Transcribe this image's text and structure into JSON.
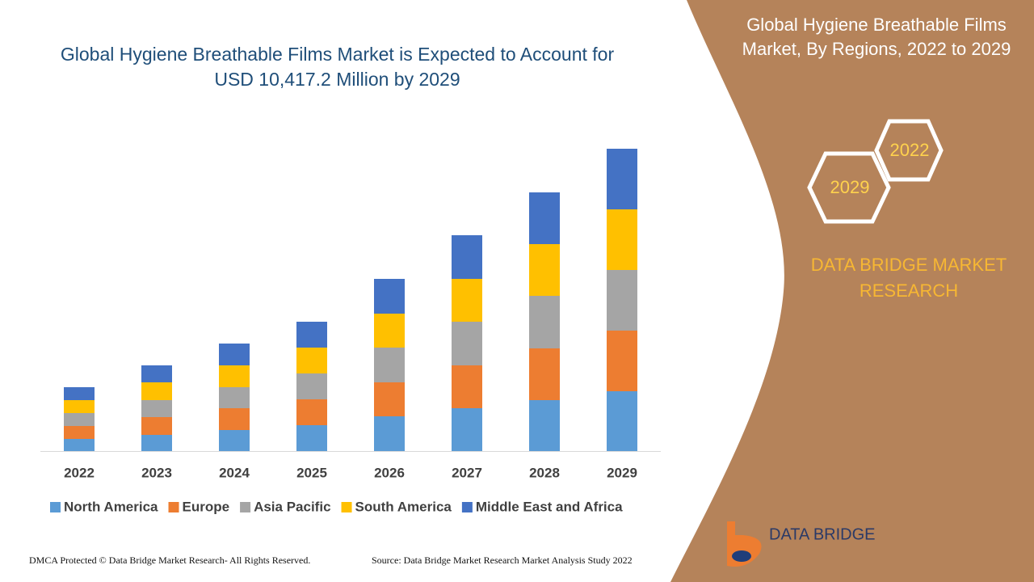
{
  "chart_data": {
    "type": "stacked_bar",
    "title": "Global Hygiene Breathable Films Market is Expected to Account for USD 10,417.2 Million by 2029",
    "categories": [
      "2022",
      "2023",
      "2024",
      "2025",
      "2026",
      "2027",
      "2028",
      "2029"
    ],
    "series": [
      {
        "name": "North America",
        "color": "#5b9bd5",
        "values": [
          15,
          20,
          26,
          32,
          43,
          53,
          63,
          74
        ]
      },
      {
        "name": "Europe",
        "color": "#ed7d31",
        "values": [
          16,
          22,
          27,
          32,
          42,
          53,
          64,
          75
        ]
      },
      {
        "name": "Asia Pacific",
        "color": "#a5a5a5",
        "values": [
          16,
          21,
          26,
          32,
          43,
          54,
          65,
          75
        ]
      },
      {
        "name": "South America",
        "color": "#ffc000",
        "values": [
          16,
          22,
          27,
          32,
          42,
          53,
          64,
          75
        ]
      },
      {
        "name": "Middle East and Africa",
        "color": "#4472c4",
        "values": [
          16,
          21,
          27,
          32,
          43,
          54,
          64,
          75
        ]
      }
    ],
    "ylim": [
      0,
      400
    ],
    "legend": "bottom"
  },
  "panel": {
    "title": "Global Hygiene Breathable Films Market, By Regions, 2022 to 2029",
    "hex_labels": [
      "2022",
      "2029"
    ],
    "brand": "DATA BRIDGE MARKET RESEARCH",
    "logo": "DATA BRIDGE"
  },
  "footer": {
    "left": "DMCA Protected © Data Bridge Market Research- All Rights Reserved.",
    "right": "Source: Data Bridge Market Research Market Analysis Study 2022"
  }
}
